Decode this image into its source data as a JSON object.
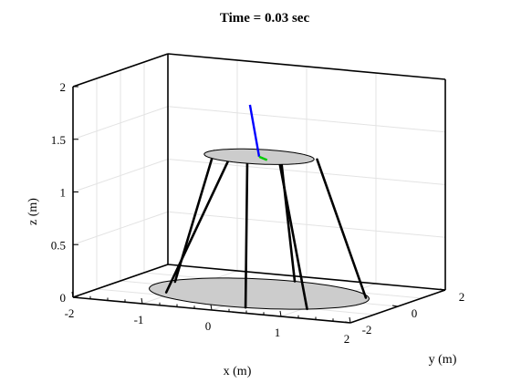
{
  "window": {
    "title": "Time = 0.03 sec"
  },
  "chart_data": {
    "type": "3d-line",
    "title": "Time = 0.03 sec",
    "xlabel": "x (m)",
    "ylabel": "y (m)",
    "zlabel": "z (m)",
    "xlim": [
      -2,
      2
    ],
    "ylim": [
      -2,
      2
    ],
    "zlim": [
      0,
      2
    ],
    "grid": true,
    "xticks": [
      "-2",
      "-1",
      "0",
      "1",
      "2"
    ],
    "yticks": [
      "-2",
      "0",
      "2"
    ],
    "zticks": [
      "0",
      "0.5",
      "1",
      "1.5",
      "2"
    ],
    "base_platform": {
      "center": [
        0,
        0,
        0
      ],
      "radius": 1.5,
      "color": "#cccccc"
    },
    "top_platform": {
      "center": [
        0,
        0,
        1.3
      ],
      "radius": 0.75,
      "color": "#cccccc"
    },
    "legs": [
      {
        "name": "leg-1",
        "from": [
          -1.35,
          0.4,
          0
        ],
        "to": [
          -0.7,
          0.15,
          1.3
        ]
      },
      {
        "name": "leg-2",
        "from": [
          -1.1,
          -0.7,
          0
        ],
        "to": [
          -0.25,
          -0.55,
          1.3
        ]
      },
      {
        "name": "leg-3",
        "from": [
          0.3,
          -1.45,
          0
        ],
        "to": [
          0.0,
          -0.5,
          1.3
        ]
      },
      {
        "name": "leg-4",
        "from": [
          1.05,
          -1.05,
          0
        ],
        "to": [
          0.45,
          -0.45,
          1.3
        ]
      },
      {
        "name": "leg-5",
        "from": [
          1.35,
          0.55,
          0
        ],
        "to": [
          0.75,
          0.25,
          1.3
        ]
      },
      {
        "name": "leg-6",
        "from": [
          0.0,
          1.5,
          0
        ],
        "to": [
          0.1,
          0.6,
          1.3
        ]
      }
    ],
    "body_axes": [
      {
        "name": "z-axis",
        "color": "#0000ff",
        "from": [
          0,
          0,
          1.3
        ],
        "to": [
          -0.15,
          0.05,
          1.78
        ]
      },
      {
        "name": "y-axis",
        "color": "#00cc00",
        "from": [
          0,
          0,
          1.3
        ],
        "to": [
          0.2,
          -0.25,
          1.3
        ]
      }
    ]
  }
}
